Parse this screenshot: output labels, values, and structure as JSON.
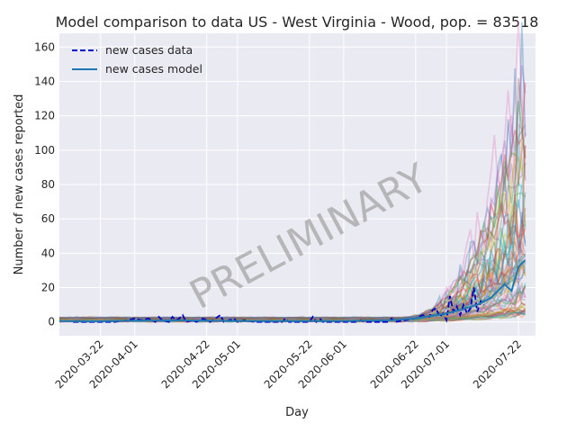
{
  "chart_data": {
    "type": "line",
    "title": "Model comparison to data US - West Virginia - Wood, pop. = 83518",
    "xlabel": "Day",
    "ylabel": "Number of new cases reported",
    "watermark": "PRELIMINARY",
    "x_range": [
      "2020-03-10",
      "2020-07-27"
    ],
    "ylim": [
      -8,
      168
    ],
    "y_ticks": [
      0,
      20,
      40,
      60,
      80,
      100,
      120,
      140,
      160
    ],
    "x_ticks": [
      "2020-03-22",
      "2020-04-01",
      "2020-04-22",
      "2020-05-01",
      "2020-05-22",
      "2020-06-01",
      "2020-06-22",
      "2020-07-01",
      "2020-07-22"
    ],
    "grid": true,
    "legend": {
      "placement": "top-left",
      "entries": [
        {
          "label": "new cases data",
          "style": "dashed",
          "color": "#0000cc"
        },
        {
          "label": "new cases model",
          "style": "solid",
          "color": "#1f77b4"
        }
      ]
    },
    "series": [
      {
        "name": "new cases data",
        "color": "#0000cc",
        "points": [
          [
            "2020-03-14",
            0
          ],
          [
            "2020-03-20",
            0
          ],
          [
            "2020-03-26",
            0
          ],
          [
            "2020-03-30",
            1
          ],
          [
            "2020-04-01",
            2
          ],
          [
            "2020-04-03",
            1
          ],
          [
            "2020-04-05",
            2
          ],
          [
            "2020-04-07",
            0
          ],
          [
            "2020-04-08",
            3
          ],
          [
            "2020-04-09",
            1
          ],
          [
            "2020-04-11",
            0
          ],
          [
            "2020-04-12",
            3
          ],
          [
            "2020-04-13",
            1
          ],
          [
            "2020-04-14",
            2
          ],
          [
            "2020-04-15",
            4
          ],
          [
            "2020-04-16",
            0
          ],
          [
            "2020-04-18",
            1
          ],
          [
            "2020-04-19",
            0
          ],
          [
            "2020-04-21",
            2
          ],
          [
            "2020-04-23",
            0
          ],
          [
            "2020-04-26",
            4
          ],
          [
            "2020-04-27",
            0
          ],
          [
            "2020-04-30",
            2
          ],
          [
            "2020-05-01",
            0
          ],
          [
            "2020-05-03",
            1
          ],
          [
            "2020-05-06",
            0
          ],
          [
            "2020-05-14",
            0
          ],
          [
            "2020-05-15",
            2
          ],
          [
            "2020-05-16",
            0
          ],
          [
            "2020-05-22",
            0
          ],
          [
            "2020-05-23",
            3
          ],
          [
            "2020-05-24",
            0
          ],
          [
            "2020-05-25",
            2
          ],
          [
            "2020-05-26",
            0
          ],
          [
            "2020-06-05",
            0
          ],
          [
            "2020-06-06",
            1
          ],
          [
            "2020-06-07",
            0
          ],
          [
            "2020-06-14",
            0
          ],
          [
            "2020-06-15",
            2
          ],
          [
            "2020-06-16",
            0
          ],
          [
            "2020-06-22",
            2
          ],
          [
            "2020-06-24",
            4
          ],
          [
            "2020-06-26",
            3
          ],
          [
            "2020-06-27",
            7
          ],
          [
            "2020-06-28",
            8
          ],
          [
            "2020-06-29",
            3
          ],
          [
            "2020-06-30",
            5
          ],
          [
            "2020-07-01",
            1
          ],
          [
            "2020-07-02",
            15
          ],
          [
            "2020-07-03",
            6
          ],
          [
            "2020-07-04",
            9
          ],
          [
            "2020-07-05",
            4
          ],
          [
            "2020-07-06",
            10
          ],
          [
            "2020-07-07",
            5
          ],
          [
            "2020-07-08",
            8
          ],
          [
            "2020-07-09",
            20
          ],
          [
            "2020-07-10",
            6
          ],
          [
            "2020-07-11",
            12
          ],
          [
            "2020-07-12",
            10
          ]
        ]
      },
      {
        "name": "new cases model",
        "color": "#1f77b4",
        "points": [
          [
            "2020-03-10",
            0.5
          ],
          [
            "2020-03-20",
            0.4
          ],
          [
            "2020-04-01",
            0.8
          ],
          [
            "2020-04-15",
            0.9
          ],
          [
            "2020-05-01",
            0.6
          ],
          [
            "2020-05-15",
            0.5
          ],
          [
            "2020-06-01",
            0.6
          ],
          [
            "2020-06-15",
            1.0
          ],
          [
            "2020-06-22",
            2.0
          ],
          [
            "2020-07-01",
            5.0
          ],
          [
            "2020-07-05",
            7.0
          ],
          [
            "2020-07-10",
            10.0
          ],
          [
            "2020-07-14",
            14.0
          ],
          [
            "2020-07-18",
            22.0
          ],
          [
            "2020-07-20",
            18.0
          ],
          [
            "2020-07-22",
            32.0
          ],
          [
            "2020-07-24",
            36.0
          ]
        ]
      }
    ]
  }
}
